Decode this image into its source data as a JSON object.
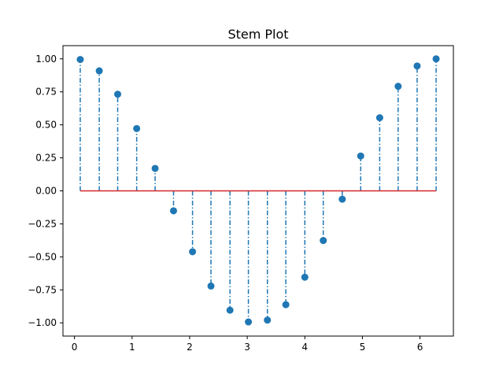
{
  "chart_data": {
    "type": "stem",
    "title": "Stem Plot",
    "xlabel": "",
    "ylabel": "",
    "xlim": [
      -0.2,
      6.58
    ],
    "ylim": [
      -1.1,
      1.1
    ],
    "xticks": [
      0,
      1,
      2,
      3,
      4,
      5,
      6
    ],
    "xtick_labels": [
      "0",
      "1",
      "2",
      "3",
      "4",
      "5",
      "6"
    ],
    "yticks": [
      1.0,
      0.75,
      0.5,
      0.25,
      0.0,
      -0.25,
      -0.5,
      -0.75,
      -1.0
    ],
    "ytick_labels": [
      "1.00",
      "0.75",
      "0.50",
      "0.25",
      "0.00",
      "−0.25",
      "−0.50",
      "−0.75",
      "−1.00"
    ],
    "baseline": 0,
    "colors": {
      "stem": "#1f77b4",
      "marker": "#1f77b4",
      "baseline": "#d62728"
    },
    "series": [
      {
        "x": [
          0.1,
          0.43,
          0.75,
          1.08,
          1.4,
          1.72,
          2.05,
          2.37,
          2.7,
          3.02,
          3.35,
          3.67,
          4.0,
          4.32,
          4.65,
          4.97,
          5.3,
          5.62,
          5.95,
          6.28
        ],
        "y": [
          0.995,
          0.909,
          0.732,
          0.472,
          0.17,
          -0.151,
          -0.461,
          -0.721,
          -0.904,
          -0.993,
          -0.979,
          -0.862,
          -0.654,
          -0.376,
          -0.063,
          0.264,
          0.554,
          0.792,
          0.946,
          1.0
        ]
      }
    ]
  }
}
